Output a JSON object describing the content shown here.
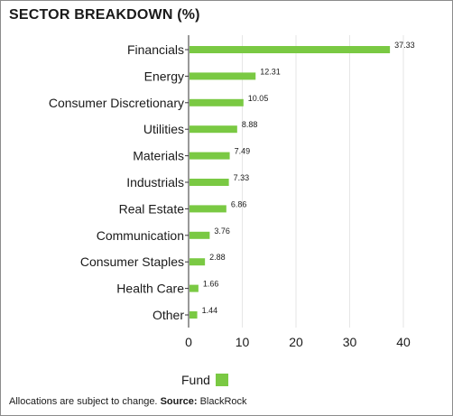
{
  "title": "SECTOR BREAKDOWN (%)",
  "legend": {
    "label": "Fund"
  },
  "footnote": {
    "text": "Allocations are subject to change.",
    "source_label": "Source:",
    "source_value": "BlackRock"
  },
  "colors": {
    "bar": "#7ac943",
    "grid": "#e6e6e6",
    "axis": "#333333"
  },
  "chart_data": {
    "type": "bar",
    "orientation": "horizontal",
    "title": "SECTOR BREAKDOWN (%)",
    "categories": [
      "Financials",
      "Energy",
      "Consumer Discretionary",
      "Utilities",
      "Materials",
      "Industrials",
      "Real Estate",
      "Communication",
      "Consumer Staples",
      "Health Care",
      "Other"
    ],
    "series": [
      {
        "name": "Fund",
        "values": [
          37.33,
          12.31,
          10.05,
          8.88,
          7.49,
          7.33,
          6.86,
          3.76,
          2.88,
          1.66,
          1.44
        ]
      }
    ],
    "value_labels": [
      "37.33",
      "12.31",
      "10.05",
      "8.88",
      "7.49",
      "7.33",
      "6.86",
      "3.76",
      "2.88",
      "1.66",
      "1.44"
    ],
    "xlim": [
      0,
      40
    ],
    "xticks": [
      "0",
      "10",
      "20",
      "30",
      "40"
    ],
    "xlabel": "",
    "ylabel": "",
    "grid": true,
    "legend_position": "bottom"
  }
}
